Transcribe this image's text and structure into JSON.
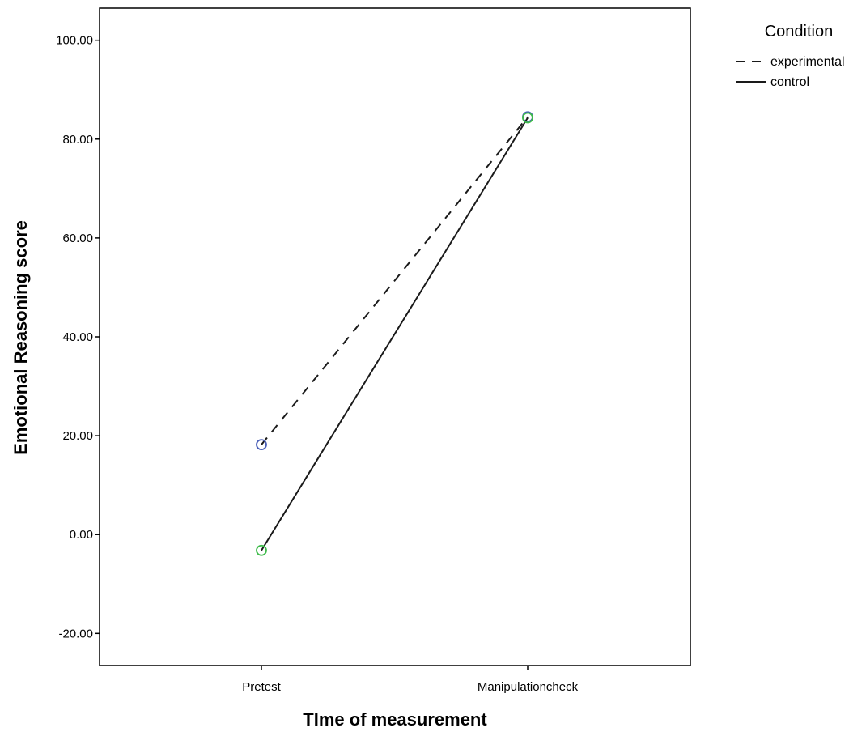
{
  "chart_data": {
    "type": "line",
    "title": "",
    "xlabel": "TIme of measurement",
    "ylabel": "Emotional Reasoning score",
    "categories": [
      "Pretest",
      "Manipulationcheck"
    ],
    "ylim": [
      -26.5,
      106.5
    ],
    "yticks": [
      -20,
      0,
      20,
      40,
      60,
      80,
      100
    ],
    "ytick_labels": [
      "-20.00",
      "0.00",
      "20.00",
      "40.00",
      "60.00",
      "80.00",
      "100.00"
    ],
    "grid": false,
    "legend": {
      "title": "Condition",
      "position": "top-right outside"
    },
    "series": [
      {
        "name": "experimental",
        "values": [
          18.2,
          84.5
        ],
        "line_style": "dashed",
        "marker": "circle",
        "marker_colors": [
          "#4a5fb8",
          "#4a5fb8"
        ]
      },
      {
        "name": "control",
        "values": [
          -3.2,
          84.3
        ],
        "line_style": "solid",
        "marker": "circle",
        "marker_colors": [
          "#3dbb4a",
          "#3dbb4a"
        ]
      }
    ]
  }
}
